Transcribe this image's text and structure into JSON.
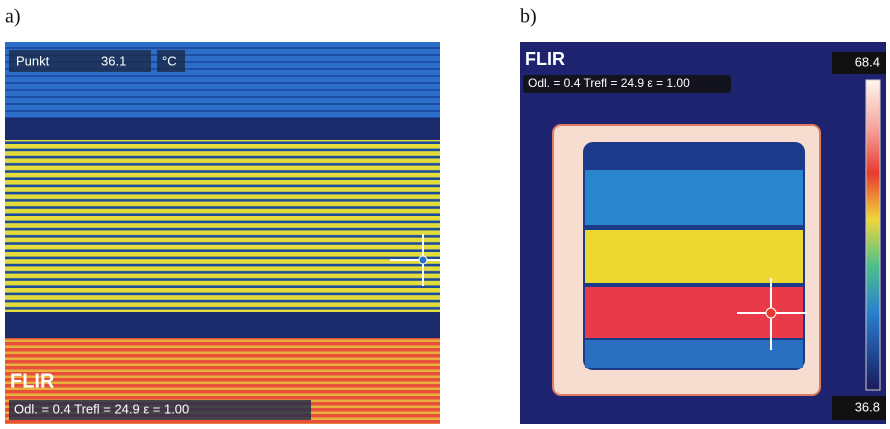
{
  "panel_a": {
    "label": "a)",
    "spot_label": "Punkt",
    "spot_value": "36.1",
    "spot_unit": "°C",
    "logo": "FLIR",
    "params": "Odl. = 0.4  Trefl = 24.9  ε = 1.00"
  },
  "panel_b": {
    "label": "b)",
    "logo": "FLIR",
    "params": "Odl. = 0.4  Trefl = 24.9  ε = 1.00",
    "scale_max": "68.4",
    "scale_min": "36.8"
  }
}
